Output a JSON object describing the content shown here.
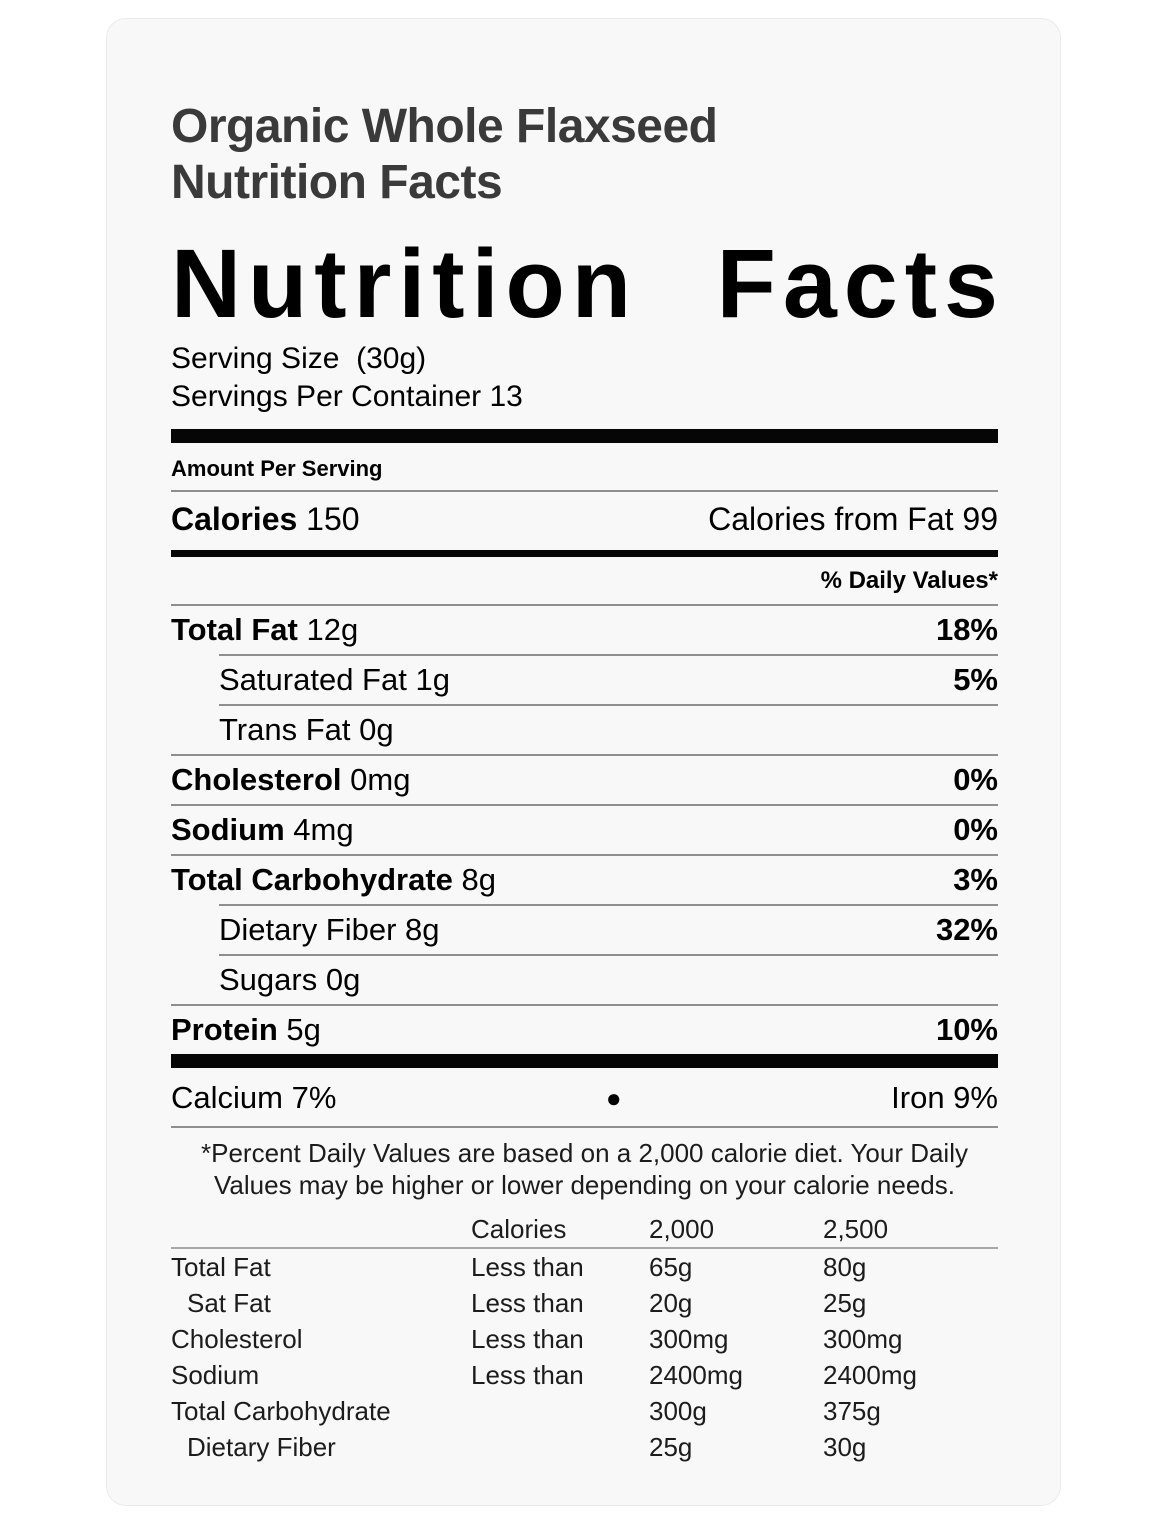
{
  "page": {
    "title_line1": "Organic Whole Flaxseed",
    "title_line2": "Nutrition Facts"
  },
  "label": {
    "heading_word1": "Nutrition",
    "heading_word2": "Facts",
    "serving_size": "Serving Size  (30g)",
    "servings_per_container": "Servings Per Container 13",
    "amount_per_serving": "Amount Per Serving",
    "calories_label": "Calories",
    "calories_value": "150",
    "calories_from_fat": "Calories from Fat 99",
    "daily_values_header": "% Daily Values*",
    "nutrients": [
      {
        "name": "Total Fat",
        "amount": "12g",
        "dv": "18%",
        "bold": true,
        "indent": false,
        "sep": "indent"
      },
      {
        "name": "Saturated Fat",
        "amount": "1g",
        "dv": "5%",
        "bold": false,
        "indent": true,
        "sep": "indent"
      },
      {
        "name": "Trans Fat",
        "amount": "0g",
        "dv": "",
        "bold": false,
        "indent": true,
        "sep": "full"
      },
      {
        "name": "Cholesterol",
        "amount": "0mg",
        "dv": "0%",
        "bold": true,
        "indent": false,
        "sep": "full"
      },
      {
        "name": "Sodium",
        "amount": "4mg",
        "dv": "0%",
        "bold": true,
        "indent": false,
        "sep": "full"
      },
      {
        "name": "Total Carbohydrate",
        "amount": "8g",
        "dv": "3%",
        "bold": true,
        "indent": false,
        "sep": "indent"
      },
      {
        "name": "Dietary Fiber",
        "amount": "8g",
        "dv": "32%",
        "bold": false,
        "indent": true,
        "sep": "indent"
      },
      {
        "name": "Sugars",
        "amount": "0g",
        "dv": "",
        "bold": false,
        "indent": true,
        "sep": "full"
      },
      {
        "name": "Protein",
        "amount": "5g",
        "dv": "10%",
        "bold": true,
        "indent": false,
        "sep": "none"
      }
    ],
    "minerals": {
      "calcium": "Calcium 7%",
      "bullet": "●",
      "iron": "Iron 9%"
    },
    "footnote_lines": [
      "*Percent Daily Values are based on a 2,000 calorie diet. Your Daily",
      "Values may be higher or lower depending on your calorie needs."
    ],
    "dv_table": {
      "header": [
        "",
        "Calories",
        "2,000",
        "2,500"
      ],
      "rows": [
        {
          "name": "Total Fat",
          "qual": "Less than",
          "v2000": "65g",
          "v2500": "80g",
          "indent": false
        },
        {
          "name": "Sat Fat",
          "qual": "Less than",
          "v2000": "20g",
          "v2500": "25g",
          "indent": true
        },
        {
          "name": "Cholesterol",
          "qual": "Less than",
          "v2000": "300mg",
          "v2500": "300mg",
          "indent": false
        },
        {
          "name": "Sodium",
          "qual": "Less than",
          "v2000": "2400mg",
          "v2500": "2400mg",
          "indent": false
        },
        {
          "name": "Total Carbohydrate",
          "qual": "",
          "v2000": "300g",
          "v2500": "375g",
          "indent": false
        },
        {
          "name": "Dietary Fiber",
          "qual": "",
          "v2000": "25g",
          "v2500": "30g",
          "indent": true
        }
      ]
    }
  },
  "colors": {
    "card_background": "#f8f8f8",
    "label_text": "#000000",
    "title_text": "#3a3a3a"
  }
}
